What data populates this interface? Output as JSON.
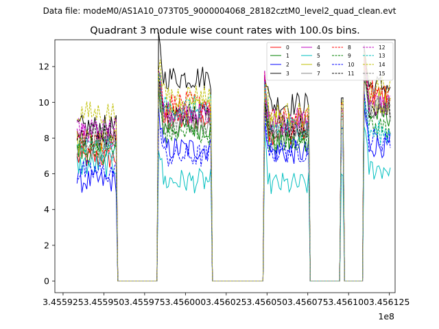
{
  "figure": {
    "suptitle": "Data file: modeM0/AS1A10_073T05_9000004068_28182cztM0_level2_quad_clean.evt"
  },
  "chart_data": {
    "type": "line",
    "title": "Quadrant 3 module wise count rates with 100.0s bins.",
    "xlabel": "",
    "ylabel": "",
    "x_offset_label": "1e8",
    "xlim": [
      3.45591998,
      3.45612851
    ],
    "ylim": [
      -0.65,
      13.5
    ],
    "x_ticks": [
      3.455925,
      3.45595,
      3.455975,
      3.456,
      3.456025,
      3.45605,
      3.456075,
      3.4561,
      3.456125
    ],
    "x_tick_labels": [
      "3.455925",
      "3.455950",
      "3.455975",
      "3.456000",
      "3.456025",
      "3.456050",
      "3.456075",
      "3.456100",
      "3.456125"
    ],
    "y_ticks": [
      0,
      2,
      4,
      6,
      8,
      10,
      12
    ],
    "y_tick_labels": [
      "0",
      "2",
      "4",
      "6",
      "8",
      "10",
      "12"
    ],
    "legend_position": "top-right",
    "legend_columns": 4,
    "segments": [
      {
        "start": 3.45593355,
        "end": 3.45595755,
        "state": "on",
        "spike_start": 0,
        "spike_end": 0
      },
      {
        "start": 3.45595855,
        "end": 3.45598255,
        "state": "off"
      },
      {
        "start": 3.45598355,
        "end": 3.45601555,
        "state": "on",
        "spike_start": 1,
        "spike_end": 0
      },
      {
        "start": 3.45601655,
        "end": 3.45604755,
        "state": "off"
      },
      {
        "start": 3.45604855,
        "end": 3.45607555,
        "state": "on",
        "spike_start": 1,
        "spike_end": 0
      },
      {
        "start": 3.45607655,
        "end": 3.45609455,
        "state": "off"
      },
      {
        "start": 3.45609555,
        "end": 3.45609655,
        "state": "on",
        "spike_start": 1,
        "spike_end": 0
      },
      {
        "start": 3.45609755,
        "end": 3.45610855,
        "state": "off"
      },
      {
        "start": 3.45610955,
        "end": 3.45612555,
        "state": "on",
        "spike_start": 1,
        "spike_end": 0
      }
    ],
    "series": [
      {
        "name": "0",
        "color": "#ff0000",
        "dash": "solid",
        "levels": [
          6.9,
          9.0,
          8.3,
          9.2,
          10.3
        ]
      },
      {
        "name": "1",
        "color": "#008000",
        "dash": "solid",
        "levels": [
          7.2,
          8.6,
          7.7,
          8.6,
          9.3
        ]
      },
      {
        "name": "2",
        "color": "#0000ff",
        "dash": "solid",
        "levels": [
          5.6,
          7.4,
          7.2,
          8.5,
          7.6
        ]
      },
      {
        "name": "3",
        "color": "#000000",
        "dash": "solid",
        "levels": [
          8.6,
          11.4,
          9.9,
          10.3,
          10.9
        ]
      },
      {
        "name": "4",
        "color": "#bf00bf",
        "dash": "solid",
        "levels": [
          8.1,
          9.4,
          8.8,
          9.5,
          9.9
        ]
      },
      {
        "name": "5",
        "color": "#00bfbf",
        "dash": "solid",
        "levels": [
          6.5,
          5.6,
          5.4,
          6.0,
          6.3
        ]
      },
      {
        "name": "6",
        "color": "#bfbf00",
        "dash": "solid",
        "levels": [
          7.8,
          9.6,
          9.1,
          9.4,
          10.0
        ]
      },
      {
        "name": "7",
        "color": "#808080",
        "dash": "solid",
        "levels": [
          7.5,
          8.9,
          8.4,
          9.1,
          9.6
        ]
      },
      {
        "name": "8",
        "color": "#ff0000",
        "dash": "dashed",
        "levels": [
          7.8,
          9.9,
          9.0,
          9.9,
          10.6
        ]
      },
      {
        "name": "9",
        "color": "#008000",
        "dash": "dashed",
        "levels": [
          7.6,
          8.3,
          7.9,
          8.8,
          8.6
        ]
      },
      {
        "name": "10",
        "color": "#0000ff",
        "dash": "dashed",
        "levels": [
          6.1,
          7.0,
          7.3,
          8.2,
          7.9
        ]
      },
      {
        "name": "11",
        "color": "#000000",
        "dash": "dashed",
        "levels": [
          8.2,
          9.3,
          8.7,
          9.6,
          9.8
        ]
      },
      {
        "name": "12",
        "color": "#bf00bf",
        "dash": "dashed",
        "levels": [
          8.4,
          9.4,
          9.0,
          9.7,
          10.0
        ]
      },
      {
        "name": "13",
        "color": "#00bfbf",
        "dash": "dashed",
        "levels": [
          7.4,
          9.7,
          8.6,
          9.2,
          8.3
        ]
      },
      {
        "name": "14",
        "color": "#bfbf00",
        "dash": "dashed",
        "levels": [
          9.4,
          10.4,
          9.3,
          10.0,
          10.8
        ]
      },
      {
        "name": "15",
        "color": "#808080",
        "dash": "dashed",
        "levels": [
          8.0,
          9.1,
          8.5,
          9.4,
          9.7
        ]
      }
    ]
  }
}
